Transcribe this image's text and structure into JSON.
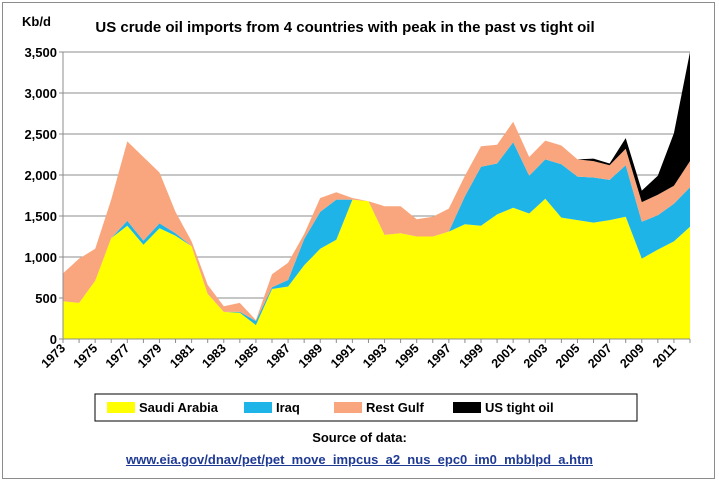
{
  "chart_data": {
    "type": "area",
    "stacked": true,
    "title": "US crude oil imports from 4 countries with peak in the past vs tight oil",
    "ylabel": "Kb/d",
    "xlabel": "",
    "ylim": [
      0,
      3500
    ],
    "yticks": [
      0,
      500,
      1000,
      1500,
      2000,
      2500,
      3000,
      3500
    ],
    "ytick_labels": [
      "0",
      "500",
      "1,000",
      "1,500",
      "2,000",
      "2,500",
      "3,000",
      "3,500"
    ],
    "grid": "horizontal",
    "x": [
      1973,
      1974,
      1975,
      1976,
      1977,
      1978,
      1979,
      1980,
      1981,
      1982,
      1983,
      1984,
      1985,
      1986,
      1987,
      1988,
      1989,
      1990,
      1991,
      1992,
      1993,
      1994,
      1995,
      1996,
      1997,
      1998,
      1999,
      2000,
      2001,
      2002,
      2003,
      2004,
      2005,
      2006,
      2007,
      2008,
      2009,
      2010,
      2011,
      2012
    ],
    "xtick_labels": [
      "1973",
      "1975",
      "1977",
      "1979",
      "1981",
      "1983",
      "1985",
      "1987",
      "1989",
      "1991",
      "1993",
      "1995",
      "1997",
      "1999",
      "2001",
      "2003",
      "2005",
      "2007",
      "2009",
      "2011"
    ],
    "series": [
      {
        "name": "Saudi Arabia",
        "color": "#ffff00",
        "values": [
          460,
          440,
          710,
          1230,
          1380,
          1150,
          1350,
          1260,
          1130,
          550,
          330,
          320,
          170,
          610,
          640,
          900,
          1100,
          1210,
          1700,
          1680,
          1270,
          1290,
          1250,
          1250,
          1310,
          1400,
          1380,
          1520,
          1600,
          1530,
          1710,
          1480,
          1450,
          1420,
          1450,
          1490,
          980,
          1090,
          1190,
          1370
        ]
      },
      {
        "name": "Iraq",
        "color": "#1fb4e8",
        "values": [
          0,
          0,
          0,
          0,
          60,
          50,
          60,
          30,
          0,
          0,
          0,
          10,
          50,
          20,
          80,
          320,
          450,
          490,
          0,
          0,
          0,
          0,
          0,
          0,
          0,
          340,
          720,
          620,
          800,
          460,
          480,
          650,
          530,
          550,
          490,
          630,
          450,
          420,
          460,
          480
        ]
      },
      {
        "name": "Rest Gulf",
        "color": "#f9a67e",
        "values": [
          340,
          540,
          390,
          470,
          970,
          1020,
          620,
          260,
          60,
          110,
          70,
          110,
          10,
          160,
          210,
          60,
          170,
          90,
          20,
          0,
          350,
          330,
          210,
          240,
          280,
          250,
          250,
          230,
          250,
          230,
          230,
          230,
          210,
          200,
          180,
          200,
          240,
          250,
          220,
          320
        ]
      },
      {
        "name": "US tight oil",
        "color": "#000000",
        "values": [
          0,
          0,
          0,
          0,
          0,
          0,
          0,
          0,
          0,
          0,
          0,
          0,
          0,
          0,
          0,
          0,
          0,
          0,
          0,
          0,
          0,
          0,
          0,
          0,
          0,
          0,
          0,
          0,
          0,
          0,
          0,
          0,
          0,
          30,
          20,
          130,
          140,
          230,
          640,
          1330
        ]
      }
    ],
    "legend_position": "bottom",
    "source_title": "Source of data:",
    "source_url": "www.eia.gov/dnav/pet/pet_move_impcus_a2_nus_epc0_im0_mbblpd_a.htm"
  }
}
